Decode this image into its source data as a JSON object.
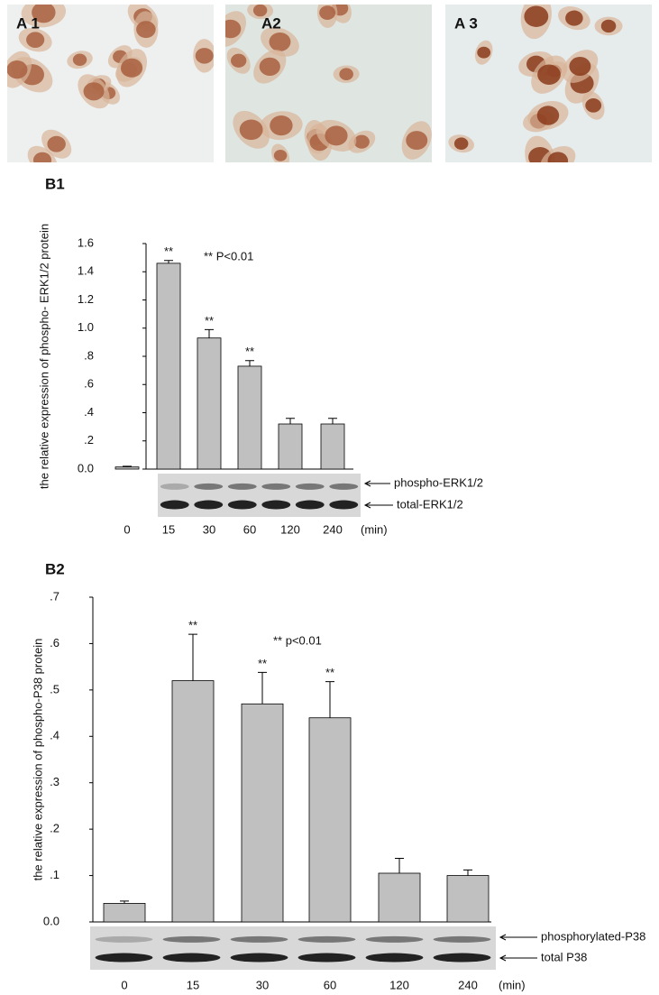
{
  "image_panels": [
    {
      "label": "A 1"
    },
    {
      "label": "A2"
    },
    {
      "label": "A 3"
    }
  ],
  "chart_data": [
    {
      "type": "bar",
      "panel_label": "B1",
      "y_label": "the relative expression of phospho- ERK1/2 protein",
      "annotation": "** P<0.01",
      "categories": [
        "0",
        "15",
        "30",
        "60",
        "120",
        "240"
      ],
      "x_unit": "(min)",
      "values": [
        0.015,
        1.46,
        0.93,
        0.73,
        0.32,
        0.32
      ],
      "errors": [
        0.005,
        0.02,
        0.06,
        0.04,
        0.04,
        0.04
      ],
      "significance": [
        null,
        "**",
        "**",
        "**",
        null,
        null
      ],
      "color": "#c0c0c0",
      "ylim": [
        0,
        1.6
      ],
      "yticks": [
        {
          "value": 0,
          "label": "0.0"
        },
        {
          "value": 0.2,
          "label": ".2"
        },
        {
          "value": 0.4,
          "label": ".4"
        },
        {
          "value": 0.6,
          "label": ".6"
        },
        {
          "value": 0.8,
          "label": ".8"
        },
        {
          "value": 1.0,
          "label": "1.0"
        },
        {
          "value": 1.2,
          "label": "1.2"
        },
        {
          "value": 1.4,
          "label": "1.4"
        },
        {
          "value": 1.6,
          "label": "1.6"
        }
      ],
      "blot_labels": [
        "phospho-ERK1/2",
        "total-ERK1/2"
      ]
    },
    {
      "type": "bar",
      "panel_label": "B2",
      "y_label": "the relative expression of phospho-P38 protein",
      "annotation": "** p<0.01",
      "categories": [
        "0",
        "15",
        "30",
        "60",
        "120",
        "240"
      ],
      "x_unit": "(min)",
      "values": [
        0.04,
        0.52,
        0.47,
        0.44,
        0.105,
        0.1
      ],
      "errors": [
        0.005,
        0.1,
        0.068,
        0.078,
        0.032,
        0.012
      ],
      "significance": [
        null,
        "**",
        "**",
        "**",
        null,
        null
      ],
      "color": "#c0c0c0",
      "ylim": [
        0,
        0.7
      ],
      "yticks": [
        {
          "value": 0,
          "label": "0.0"
        },
        {
          "value": 0.1,
          "label": ".1"
        },
        {
          "value": 0.2,
          "label": ".2"
        },
        {
          "value": 0.3,
          "label": ".3"
        },
        {
          "value": 0.4,
          "label": ".4"
        },
        {
          "value": 0.5,
          "label": ".5"
        },
        {
          "value": 0.6,
          "label": ".6"
        },
        {
          "value": 0.7,
          "label": ".7"
        }
      ],
      "blot_labels": [
        "phosphorylated-P38",
        "total P38"
      ]
    }
  ]
}
